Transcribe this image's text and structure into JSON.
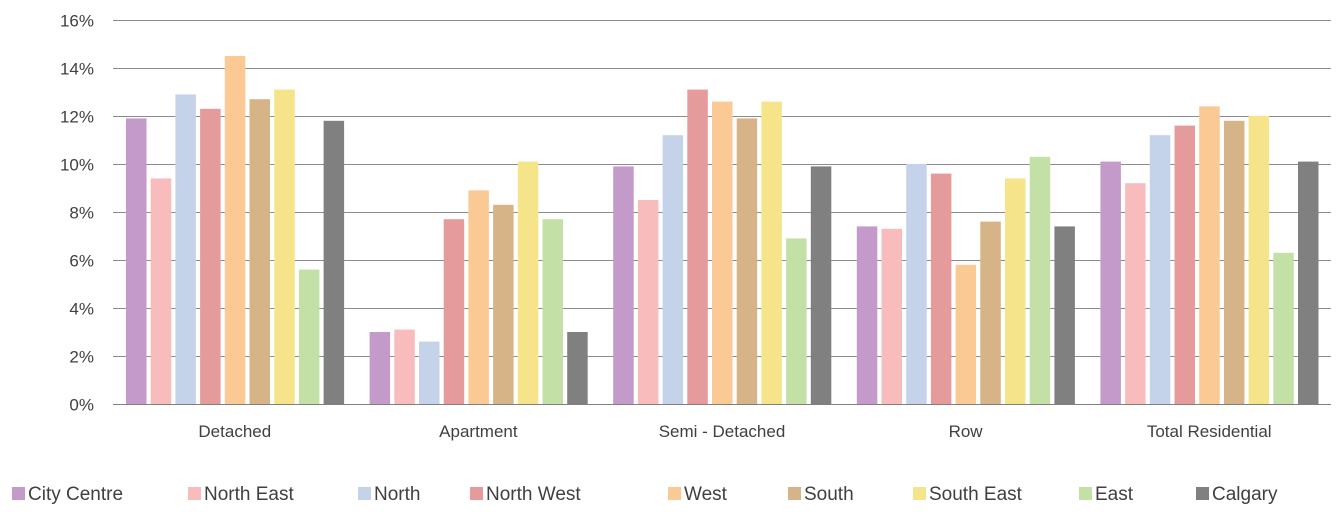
{
  "chart_data": {
    "type": "bar",
    "title": "",
    "xlabel": "",
    "ylabel": "",
    "ylim": [
      0,
      0.16
    ],
    "ytick_values": [
      0,
      0.02,
      0.04,
      0.06,
      0.08,
      0.1,
      0.12,
      0.14,
      0.16
    ],
    "ytick_labels": [
      "0%",
      "2%",
      "4%",
      "6%",
      "8%",
      "10%",
      "12%",
      "14%",
      "16%"
    ],
    "grid": true,
    "legend_position": "bottom",
    "categories": [
      "Detached",
      "Apartment",
      "Semi - Detached",
      "Row",
      "Total Residential"
    ],
    "series": [
      {
        "name": "City Centre",
        "color": "#c39ac9",
        "values": [
          0.119,
          0.03,
          0.099,
          0.074,
          0.101
        ]
      },
      {
        "name": "North East",
        "color": "#f9bcbc",
        "values": [
          0.094,
          0.031,
          0.085,
          0.073,
          0.092
        ]
      },
      {
        "name": "North",
        "color": "#c5d3ea",
        "values": [
          0.129,
          0.026,
          0.112,
          0.1,
          0.112
        ]
      },
      {
        "name": "North West",
        "color": "#e59b9b",
        "values": [
          0.123,
          0.077,
          0.131,
          0.096,
          0.116
        ]
      },
      {
        "name": "West",
        "color": "#fbc993",
        "values": [
          0.145,
          0.089,
          0.126,
          0.058,
          0.124
        ]
      },
      {
        "name": "South",
        "color": "#d7b487",
        "values": [
          0.127,
          0.083,
          0.119,
          0.076,
          0.118
        ]
      },
      {
        "name": "South East",
        "color": "#f6e48a",
        "values": [
          0.131,
          0.101,
          0.126,
          0.094,
          0.12
        ]
      },
      {
        "name": "East",
        "color": "#c3e0a6",
        "values": [
          0.056,
          0.077,
          0.069,
          0.103,
          0.063
        ]
      },
      {
        "name": "Calgary",
        "color": "#808080",
        "values": [
          0.118,
          0.03,
          0.099,
          0.074,
          0.101
        ]
      }
    ]
  }
}
